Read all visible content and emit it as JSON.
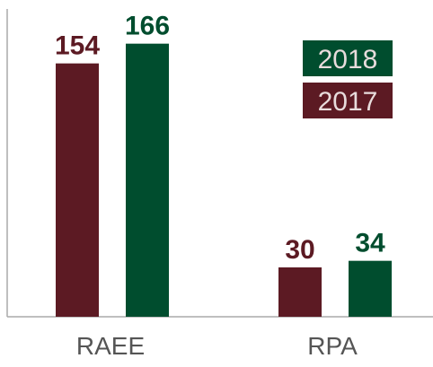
{
  "chart_data": {
    "type": "bar",
    "categories": [
      "RAEE",
      "RPA"
    ],
    "series": [
      {
        "name": "2017",
        "values": [
          154,
          30
        ],
        "color": "#5c1a23"
      },
      {
        "name": "2018",
        "values": [
          166,
          34
        ],
        "color": "#004d2e"
      }
    ],
    "ylim": [
      0,
      180
    ],
    "grid": false,
    "legend": {
      "placement": "top-right",
      "entries": [
        "2018",
        "2017"
      ]
    },
    "title": "",
    "xlabel": "",
    "ylabel": ""
  }
}
